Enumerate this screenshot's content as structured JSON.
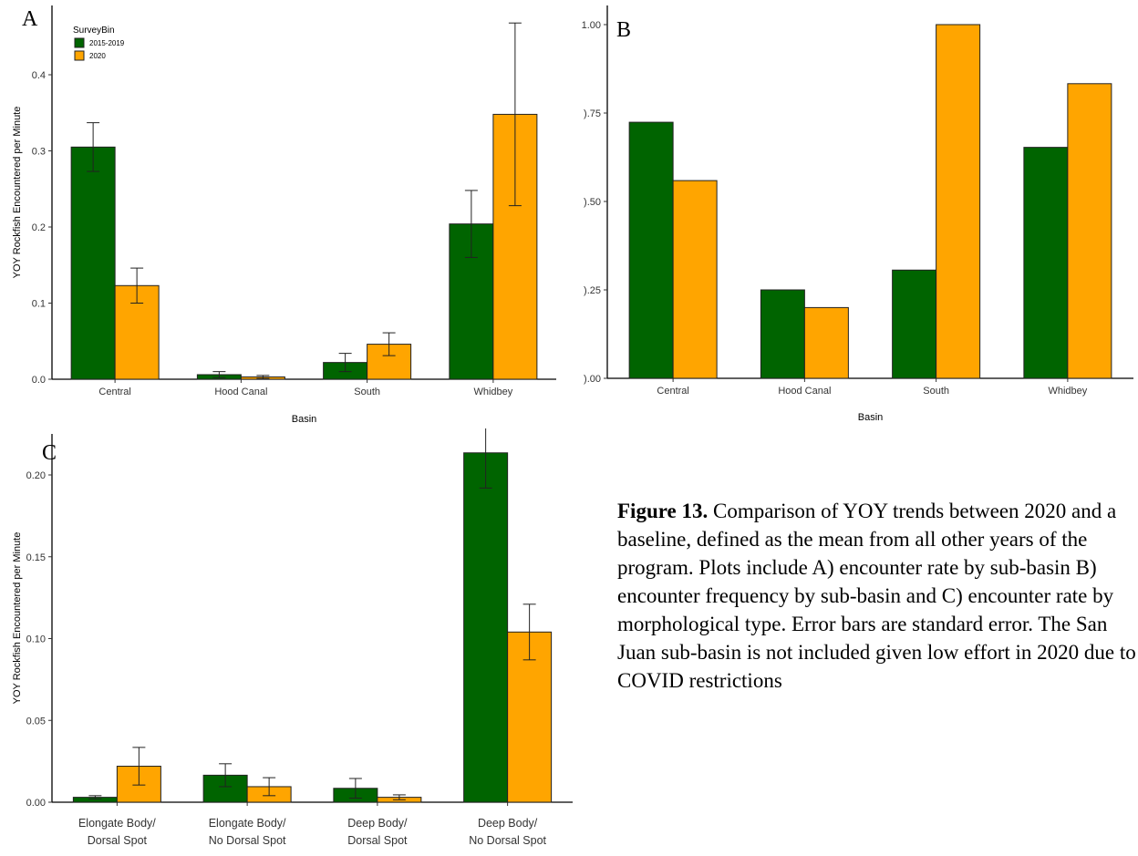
{
  "colors": {
    "baseline": "#006400",
    "current": "#ffa500"
  },
  "legend": {
    "title": "SurveyBin",
    "items": [
      "2015-2019",
      "2020"
    ]
  },
  "caption": {
    "label": "Figure 13.",
    "text": "Comparison of YOY trends between 2020 and a baseline, defined as the mean from all other years of the program. Plots include A) encounter rate by sub-basin B) encounter frequency by sub-basin and C) encounter rate by morphological type. Error bars are standard error. The San Juan sub-basin is not included given low effort in 2020 due to COVID restrictions"
  },
  "chart_data": [
    {
      "panel": "A",
      "type": "bar",
      "xlabel": "Basin",
      "ylabel": "YOY Rockfish Encountered per Minute",
      "ylim": [
        0,
        0.4
      ],
      "yticks": [
        "0.0",
        "0.1",
        "0.2",
        "0.3",
        "0.4"
      ],
      "categories": [
        "Central",
        "Hood Canal",
        "South",
        "Whidbey"
      ],
      "series": [
        {
          "name": "2015-2019",
          "values": [
            0.305,
            0.006,
            0.022,
            0.204
          ],
          "errors": [
            0.032,
            0.004,
            0.012,
            0.044
          ]
        },
        {
          "name": "2020",
          "values": [
            0.123,
            0.003,
            0.046,
            0.348
          ],
          "errors": [
            0.023,
            0.002,
            0.015,
            0.12
          ]
        }
      ],
      "grid": false,
      "legend_position": "top-left"
    },
    {
      "panel": "B",
      "type": "bar",
      "xlabel": "Basin",
      "ylabel": "",
      "ylim": [
        0,
        1.0
      ],
      "yticks": [
        ").00",
        ").25",
        ").50",
        ").75",
        "1.00"
      ],
      "categories": [
        "Central",
        "Hood Canal",
        "South",
        "Whidbey"
      ],
      "series": [
        {
          "name": "2015-2019",
          "values": [
            0.724,
            0.25,
            0.306,
            0.653
          ]
        },
        {
          "name": "2020",
          "values": [
            0.559,
            0.2,
            1.0,
            0.833
          ]
        }
      ],
      "grid": false
    },
    {
      "panel": "C",
      "type": "bar",
      "xlabel": "",
      "ylabel": "YOY Rockfish Encountered per Minute",
      "ylim": [
        0,
        0.2
      ],
      "yticks": [
        "0.00",
        "0.05",
        "0.10",
        "0.15",
        "0.20"
      ],
      "categories": [
        [
          "Elongate Body/",
          "Dorsal Spot"
        ],
        [
          "Elongate Body/",
          "No Dorsal Spot"
        ],
        [
          "Deep Body/",
          "Dorsal Spot"
        ],
        [
          "Deep Body/",
          "No Dorsal Spot"
        ]
      ],
      "series": [
        {
          "name": "2015-2019",
          "values": [
            0.003,
            0.0165,
            0.0085,
            0.2135
          ],
          "errors": [
            0.001,
            0.007,
            0.006,
            0.0215
          ]
        },
        {
          "name": "2020",
          "values": [
            0.022,
            0.0095,
            0.003,
            0.104
          ],
          "errors": [
            0.0115,
            0.0055,
            0.0015,
            0.017
          ]
        }
      ],
      "grid": false
    }
  ]
}
